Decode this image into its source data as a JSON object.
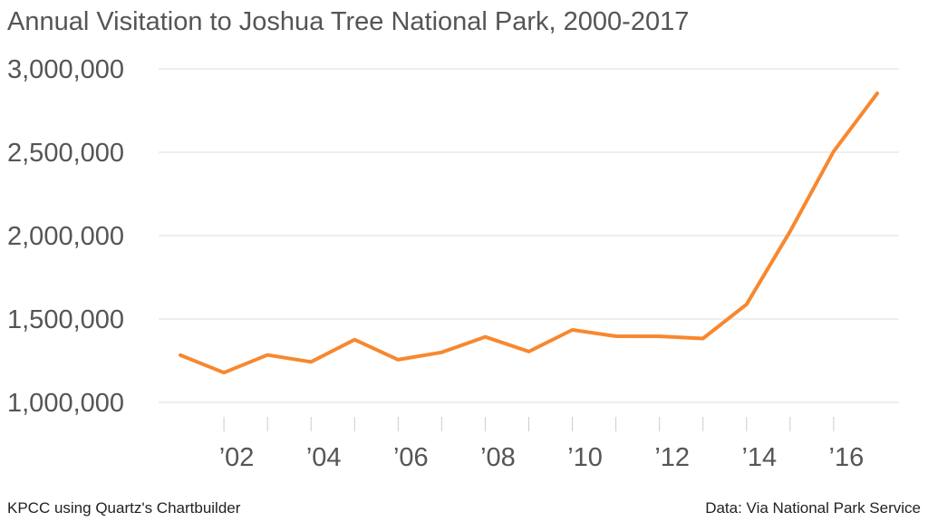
{
  "chart_data": {
    "type": "line",
    "title": "Annual Visitation to Joshua Tree National Park, 2000-2017",
    "x": [
      2001,
      2002,
      2003,
      2004,
      2005,
      2006,
      2007,
      2008,
      2009,
      2010,
      2011,
      2012,
      2013,
      2014,
      2015,
      2016,
      2017
    ],
    "series": [
      {
        "values": [
          1283000,
          1178000,
          1284000,
          1243000,
          1376000,
          1256000,
          1300000,
          1393000,
          1305000,
          1435000,
          1397000,
          1396000,
          1383000,
          1588000,
          2026000,
          2505000,
          2853000
        ],
        "color": "#f7882f"
      }
    ],
    "ylim": [
      1000000,
      3000000
    ],
    "yticks": [
      1000000,
      1500000,
      2000000,
      2500000,
      3000000
    ],
    "ytick_labels": [
      "1,000,000",
      "1,500,000",
      "2,000,000",
      "2,500,000",
      "3,000,000"
    ],
    "xlim": [
      2000.5,
      2017.5
    ],
    "xticks": [
      2002,
      2004,
      2006,
      2008,
      2010,
      2012,
      2014,
      2016
    ],
    "xtick_labels": [
      "’02",
      "’04",
      "’06",
      "’08",
      "’10",
      "’12",
      "’14",
      "’16"
    ],
    "minor_xticks": [
      2003,
      2005,
      2007,
      2009,
      2011,
      2013,
      2015
    ],
    "grid": true,
    "legend": "none"
  },
  "footer": {
    "source_left": "KPCC using Quartz's Chartbuilder",
    "source_right": "Data: Via National Park Service"
  },
  "colors": {
    "line": "#f7882f",
    "grid": "#dddddd",
    "text": "#555555"
  }
}
